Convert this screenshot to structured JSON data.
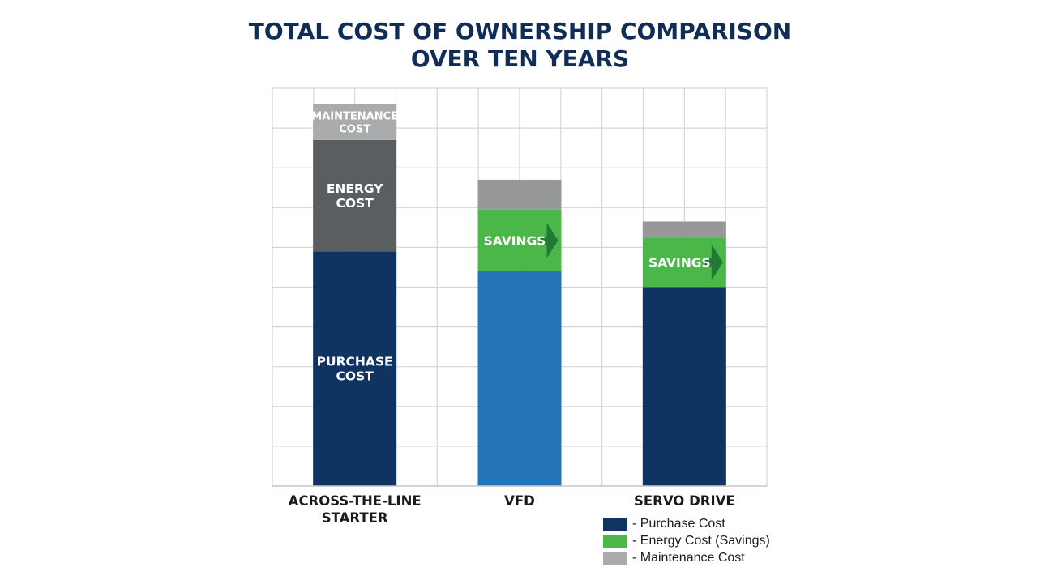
{
  "chart_data": {
    "type": "bar",
    "stacked": true,
    "title": [
      "TOTAL COST OF OWNERSHIP COMPARISON",
      "OVER TEN YEARS"
    ],
    "xlabel": "",
    "ylabel": "",
    "grid": true,
    "ylim": [
      0,
      10
    ],
    "categories": [
      [
        "ACROSS-THE-LINE",
        "STARTER"
      ],
      [
        "VFD"
      ],
      [
        "SERVO DRIVE"
      ]
    ],
    "series": [
      {
        "name": "Purchase Cost",
        "values": [
          5.9,
          5.4,
          5.0
        ],
        "colors": [
          "#0f3462",
          "#2474b8",
          "#0f3462"
        ],
        "labels": [
          [
            "PURCHASE",
            "COST"
          ],
          null,
          null
        ]
      },
      {
        "name": "Energy Cost (Savings)",
        "values": [
          2.8,
          1.55,
          1.25
        ],
        "colors": [
          "#5b5e61",
          "#4cb749",
          "#4cb749"
        ],
        "labels": [
          [
            "ENERGY",
            "COST"
          ],
          [
            "SAVINGS"
          ],
          [
            "SAVINGS"
          ]
        ],
        "arrows": [
          false,
          true,
          true
        ]
      },
      {
        "name": "Maintenance Cost",
        "values": [
          0.9,
          0.75,
          0.4
        ],
        "colors": [
          "#a9abad",
          "#969899",
          "#969899"
        ],
        "labels": [
          [
            "MAINTENANCE",
            "COST"
          ],
          null,
          null
        ]
      }
    ]
  },
  "legend": {
    "items": [
      {
        "label": "- Purchase Cost",
        "color": "#0f3462"
      },
      {
        "label": "- Energy Cost (Savings)",
        "color": "#4cb749"
      },
      {
        "label": "- Maintenance Cost",
        "color": "#a9abad"
      }
    ]
  }
}
